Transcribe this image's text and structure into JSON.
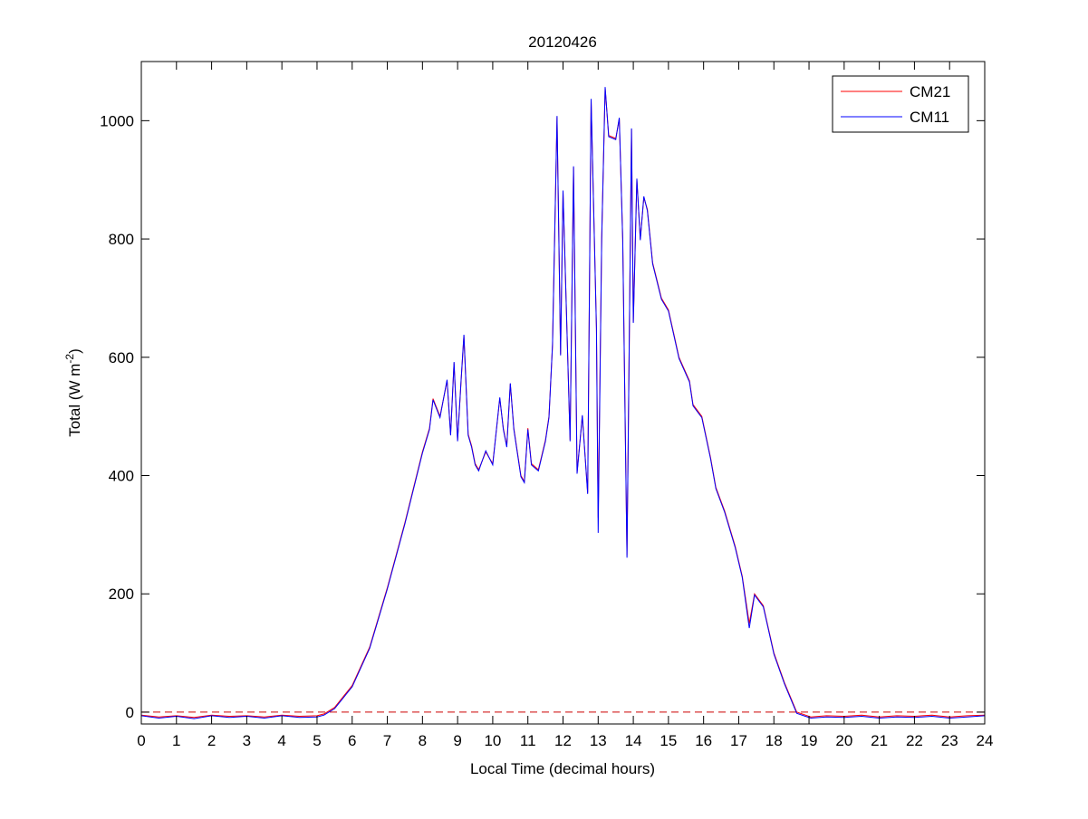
{
  "chart_data": {
    "type": "line",
    "title": "20120426",
    "xlabel": "Local Time (decimal hours)",
    "ylabel": "Total (W m",
    "ylabel_sup": "-2",
    "ylabel_close": ")",
    "xlim": [
      0,
      24
    ],
    "ylim": [
      -20,
      1100
    ],
    "xticks": [
      0,
      1,
      2,
      3,
      4,
      5,
      6,
      7,
      8,
      9,
      10,
      11,
      12,
      13,
      14,
      15,
      16,
      17,
      18,
      19,
      20,
      21,
      22,
      23,
      24
    ],
    "yticks": [
      0,
      200,
      400,
      600,
      800,
      1000
    ],
    "grid": false,
    "legend_position": "top-right",
    "reference_line": {
      "y": 0,
      "style": "dashed",
      "color": "#cc0000"
    },
    "x": [
      0,
      0.5,
      1,
      1.5,
      2,
      2.5,
      3,
      3.5,
      4,
      4.5,
      5,
      5.2,
      5.5,
      6,
      6.5,
      7,
      7.5,
      8,
      8.2,
      8.3,
      8.5,
      8.7,
      8.8,
      8.9,
      9.0,
      9.1,
      9.18,
      9.3,
      9.4,
      9.5,
      9.6,
      9.8,
      10.0,
      10.2,
      10.3,
      10.4,
      10.5,
      10.6,
      10.8,
      10.9,
      11.0,
      11.1,
      11.3,
      11.5,
      11.6,
      11.7,
      11.83,
      11.93,
      12.0,
      12.2,
      12.3,
      12.4,
      12.55,
      12.7,
      12.8,
      12.95,
      13.0,
      13.1,
      13.2,
      13.3,
      13.5,
      13.6,
      13.7,
      13.82,
      13.95,
      14.0,
      14.1,
      14.2,
      14.3,
      14.4,
      14.55,
      14.8,
      15.0,
      15.15,
      15.3,
      15.6,
      15.7,
      15.95,
      16.2,
      16.35,
      16.6,
      16.9,
      17.1,
      17.3,
      17.45,
      17.7,
      18.0,
      18.3,
      18.65,
      19.05,
      19.5,
      20,
      20.5,
      21,
      21.5,
      22,
      22.5,
      23,
      23.5,
      24
    ],
    "series": [
      {
        "name": "CM21",
        "color": "#ff0000",
        "values": [
          -5,
          -8,
          -6,
          -9,
          -5,
          -7,
          -6,
          -8,
          -5,
          -7,
          -6,
          -3,
          8,
          45,
          110,
          210,
          320,
          440,
          480,
          530,
          500,
          560,
          470,
          590,
          460,
          560,
          636,
          470,
          450,
          420,
          410,
          440,
          420,
          530,
          480,
          450,
          555,
          480,
          400,
          390,
          480,
          420,
          410,
          460,
          500,
          620,
          1006,
          605,
          880,
          460,
          921,
          405,
          500,
          371,
          1035,
          650,
          329,
          800,
          1055,
          975,
          970,
          1003,
          800,
          265,
          985,
          660,
          900,
          800,
          870,
          850,
          760,
          700,
          680,
          640,
          600,
          560,
          520,
          500,
          430,
          380,
          340,
          280,
          230,
          150,
          200,
          180,
          100,
          50,
          0,
          -8,
          -6,
          -7,
          -5,
          -8,
          -6,
          -7,
          -5,
          -8,
          -6,
          -5
        ]
      },
      {
        "name": "CM11",
        "color": "#0000ff",
        "values": [
          -6,
          -10,
          -7,
          -11,
          -6,
          -9,
          -7,
          -10,
          -6,
          -9,
          -8,
          -5,
          6,
          43,
          108,
          208,
          318,
          438,
          478,
          528,
          498,
          562,
          468,
          592,
          458,
          562,
          638,
          468,
          448,
          418,
          408,
          442,
          418,
          532,
          478,
          448,
          556,
          478,
          398,
          388,
          478,
          418,
          408,
          458,
          498,
          622,
          1008,
          603,
          882,
          458,
          923,
          403,
          502,
          369,
          1037,
          648,
          303,
          802,
          1057,
          973,
          968,
          1005,
          798,
          261,
          987,
          658,
          902,
          798,
          872,
          848,
          758,
          698,
          678,
          638,
          598,
          558,
          518,
          498,
          428,
          378,
          338,
          278,
          228,
          142,
          198,
          178,
          98,
          48,
          -2,
          -10,
          -8,
          -9,
          -7,
          -10,
          -8,
          -9,
          -7,
          -10,
          -8,
          -6
        ]
      }
    ]
  }
}
